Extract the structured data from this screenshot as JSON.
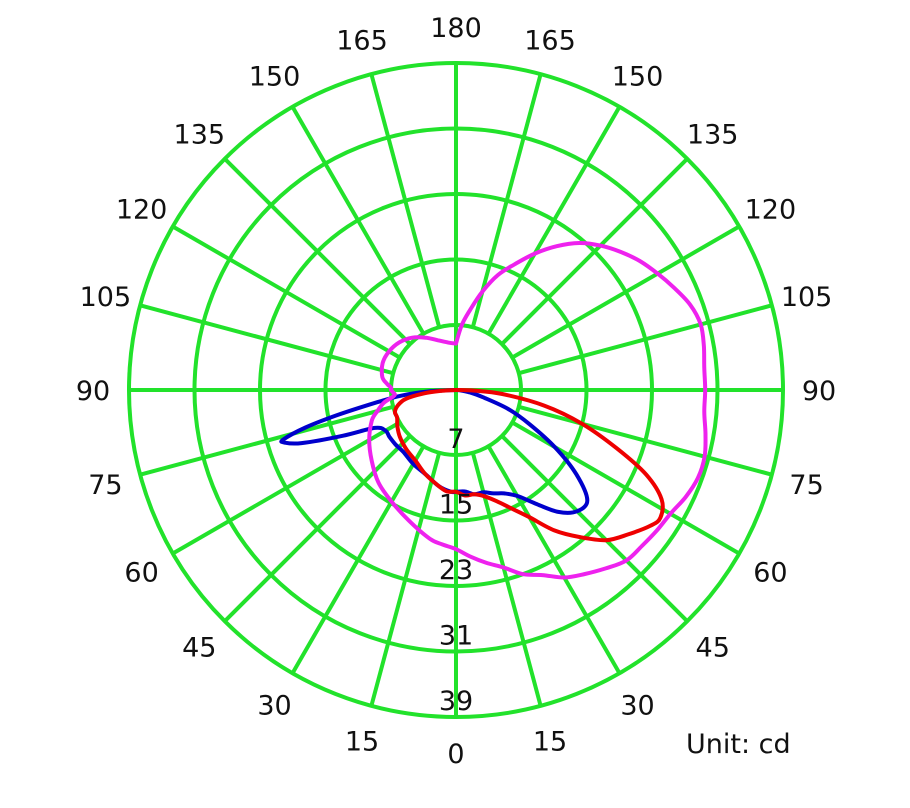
{
  "chart_data": {
    "type": "polar",
    "unit_label": "Unit: cd",
    "radial_ticks": [
      7,
      15,
      23,
      31,
      39
    ],
    "radial_max": 39,
    "angle_labels_left": [
      180,
      165,
      150,
      135,
      120,
      105,
      90,
      75,
      60,
      45,
      30,
      15,
      0
    ],
    "angle_labels_right": [
      165,
      150,
      135,
      120,
      105,
      90,
      75,
      60,
      45,
      30,
      15
    ],
    "grid": true,
    "colors": {
      "grid": "#22e22b",
      "background": "#ffffff"
    },
    "series": [
      {
        "color": "#0000cc",
        "points": [
          [
            -90,
            0
          ],
          [
            -87,
            3
          ],
          [
            -84,
            6
          ],
          [
            -81,
            9
          ],
          [
            -78,
            14
          ],
          [
            -76,
            18
          ],
          [
            -74,
            21
          ],
          [
            -73,
            21
          ],
          [
            -71,
            19
          ],
          [
            -68,
            14
          ],
          [
            -65,
            10
          ],
          [
            -60,
            9
          ],
          [
            -55,
            9
          ],
          [
            -48,
            9
          ],
          [
            -40,
            9
          ],
          [
            -30,
            9.5
          ],
          [
            -20,
            10
          ],
          [
            -10,
            11
          ],
          [
            -3,
            11.5
          ],
          [
            0,
            11.5
          ],
          [
            5,
            11.5
          ],
          [
            10,
            12
          ],
          [
            15,
            12
          ],
          [
            20,
            12.5
          ],
          [
            25,
            13
          ],
          [
            30,
            14
          ],
          [
            35,
            16
          ],
          [
            40,
            18.5
          ],
          [
            45,
            20
          ],
          [
            50,
            20
          ],
          [
            55,
            17
          ],
          [
            60,
            13
          ],
          [
            65,
            9
          ],
          [
            70,
            6
          ],
          [
            75,
            3
          ],
          [
            80,
            1.5
          ],
          [
            86,
            0.4
          ],
          [
            90,
            0
          ]
        ]
      },
      {
        "color": "#ee0000",
        "points": [
          [
            -90,
            0
          ],
          [
            -87,
            1.5
          ],
          [
            -84,
            3.5
          ],
          [
            -80,
            5.5
          ],
          [
            -75,
            6.5
          ],
          [
            -70,
            7
          ],
          [
            -65,
            7
          ],
          [
            -58,
            7.5
          ],
          [
            -50,
            8
          ],
          [
            -40,
            8.5
          ],
          [
            -30,
            9
          ],
          [
            -20,
            10
          ],
          [
            -10,
            11
          ],
          [
            -5,
            11.5
          ],
          [
            0,
            11.5
          ],
          [
            5,
            12
          ],
          [
            10,
            12
          ],
          [
            15,
            12.5
          ],
          [
            20,
            13.5
          ],
          [
            25,
            15
          ],
          [
            30,
            17
          ],
          [
            35,
            20
          ],
          [
            40,
            22.5
          ],
          [
            45,
            25
          ],
          [
            50,
            26.5
          ],
          [
            55,
            28
          ],
          [
            58,
            28.5
          ],
          [
            62,
            27.5
          ],
          [
            66,
            24.5
          ],
          [
            70,
            20
          ],
          [
            75,
            15
          ],
          [
            80,
            10
          ],
          [
            85,
            5
          ],
          [
            88,
            2
          ],
          [
            90,
            0
          ]
        ]
      },
      {
        "color": "#ee22ee",
        "points": [
          [
            -180,
            5
          ],
          [
            -170,
            5.2
          ],
          [
            -160,
            5.7
          ],
          [
            -150,
            6.5
          ],
          [
            -140,
            7.4
          ],
          [
            -130,
            8.1
          ],
          [
            -120,
            8.5
          ],
          [
            -110,
            8.6
          ],
          [
            -100,
            8.2
          ],
          [
            -95,
            7.5
          ],
          [
            -92,
            7
          ],
          [
            -90,
            7
          ],
          [
            -88,
            6.8
          ],
          [
            -86,
            6.6
          ],
          [
            -84,
            6.8
          ],
          [
            -80,
            8
          ],
          [
            -75,
            9
          ],
          [
            -70,
            10
          ],
          [
            -60,
            11.3
          ],
          [
            -50,
            12.5
          ],
          [
            -40,
            13.8
          ],
          [
            -30,
            14.8
          ],
          [
            -20,
            16
          ],
          [
            -10,
            17.5
          ],
          [
            -5,
            18
          ],
          [
            0,
            18.5
          ],
          [
            5,
            19.5
          ],
          [
            10,
            20.5
          ],
          [
            15,
            21.5
          ],
          [
            20,
            23
          ],
          [
            25,
            24
          ],
          [
            30,
            25.5
          ],
          [
            35,
            26.5
          ],
          [
            40,
            27.5
          ],
          [
            45,
            28.5
          ],
          [
            50,
            28.7
          ],
          [
            55,
            29
          ],
          [
            60,
            29.3
          ],
          [
            65,
            30
          ],
          [
            70,
            30.5
          ],
          [
            75,
            30.5
          ],
          [
            80,
            30
          ],
          [
            85,
            29.5
          ],
          [
            90,
            29.5
          ],
          [
            95,
            29.5
          ],
          [
            100,
            29.8
          ],
          [
            105,
            30
          ],
          [
            110,
            29.5
          ],
          [
            115,
            28.5
          ],
          [
            120,
            27.5
          ],
          [
            125,
            26.5
          ],
          [
            130,
            25.3
          ],
          [
            135,
            24
          ],
          [
            140,
            22.5
          ],
          [
            145,
            20.5
          ],
          [
            150,
            18.3
          ],
          [
            155,
            16
          ],
          [
            160,
            14
          ],
          [
            165,
            11.5
          ],
          [
            170,
            9
          ],
          [
            175,
            7
          ],
          [
            180,
            5
          ]
        ]
      }
    ]
  }
}
